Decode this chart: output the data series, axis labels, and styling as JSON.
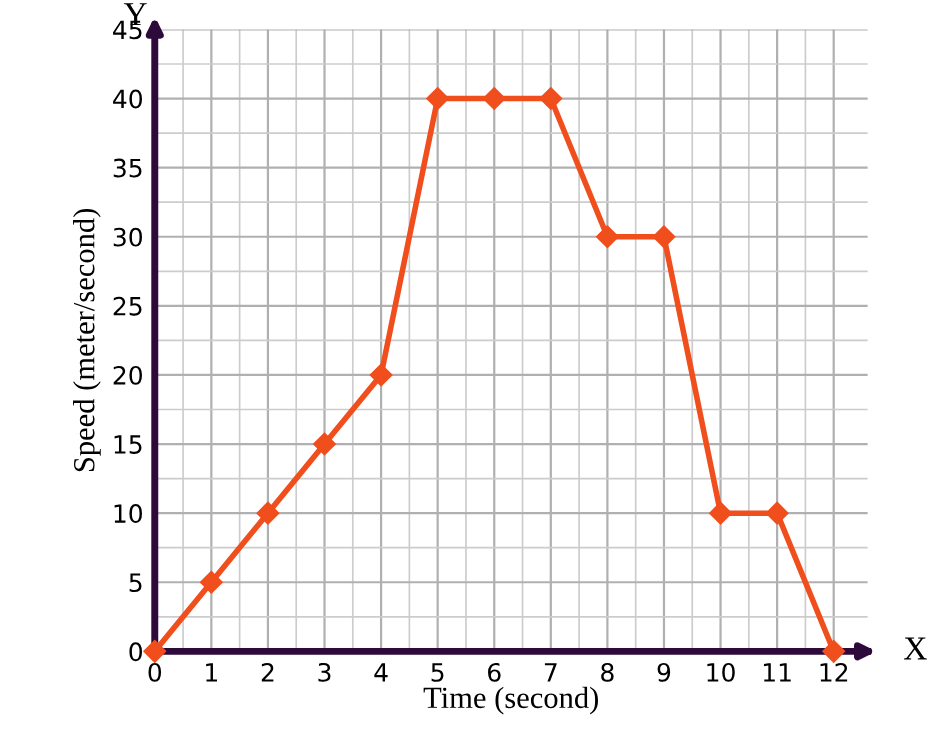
{
  "chart_data": {
    "type": "line",
    "xlabel": "Time (second)",
    "ylabel": "Speed (meter/second)",
    "x": [
      0,
      1,
      2,
      3,
      4,
      5,
      6,
      7,
      8,
      9,
      10,
      11,
      12
    ],
    "series": [
      {
        "color": "#f04e1c",
        "values": [
          0,
          5,
          10,
          15,
          20,
          40,
          40,
          40,
          30,
          30,
          10,
          10,
          0
        ]
      }
    ],
    "xlim": [
      0,
      12.6
    ],
    "ylim": [
      0,
      45
    ],
    "xticks": [
      0,
      1,
      2,
      3,
      4,
      5,
      6,
      7,
      8,
      9,
      10,
      11,
      12
    ],
    "yticks": [
      0,
      5,
      10,
      15,
      20,
      25,
      30,
      35,
      40,
      45
    ],
    "grid": true,
    "marker": "diamond",
    "line_style": "solid",
    "annotations": [
      "X",
      "Y"
    ]
  }
}
